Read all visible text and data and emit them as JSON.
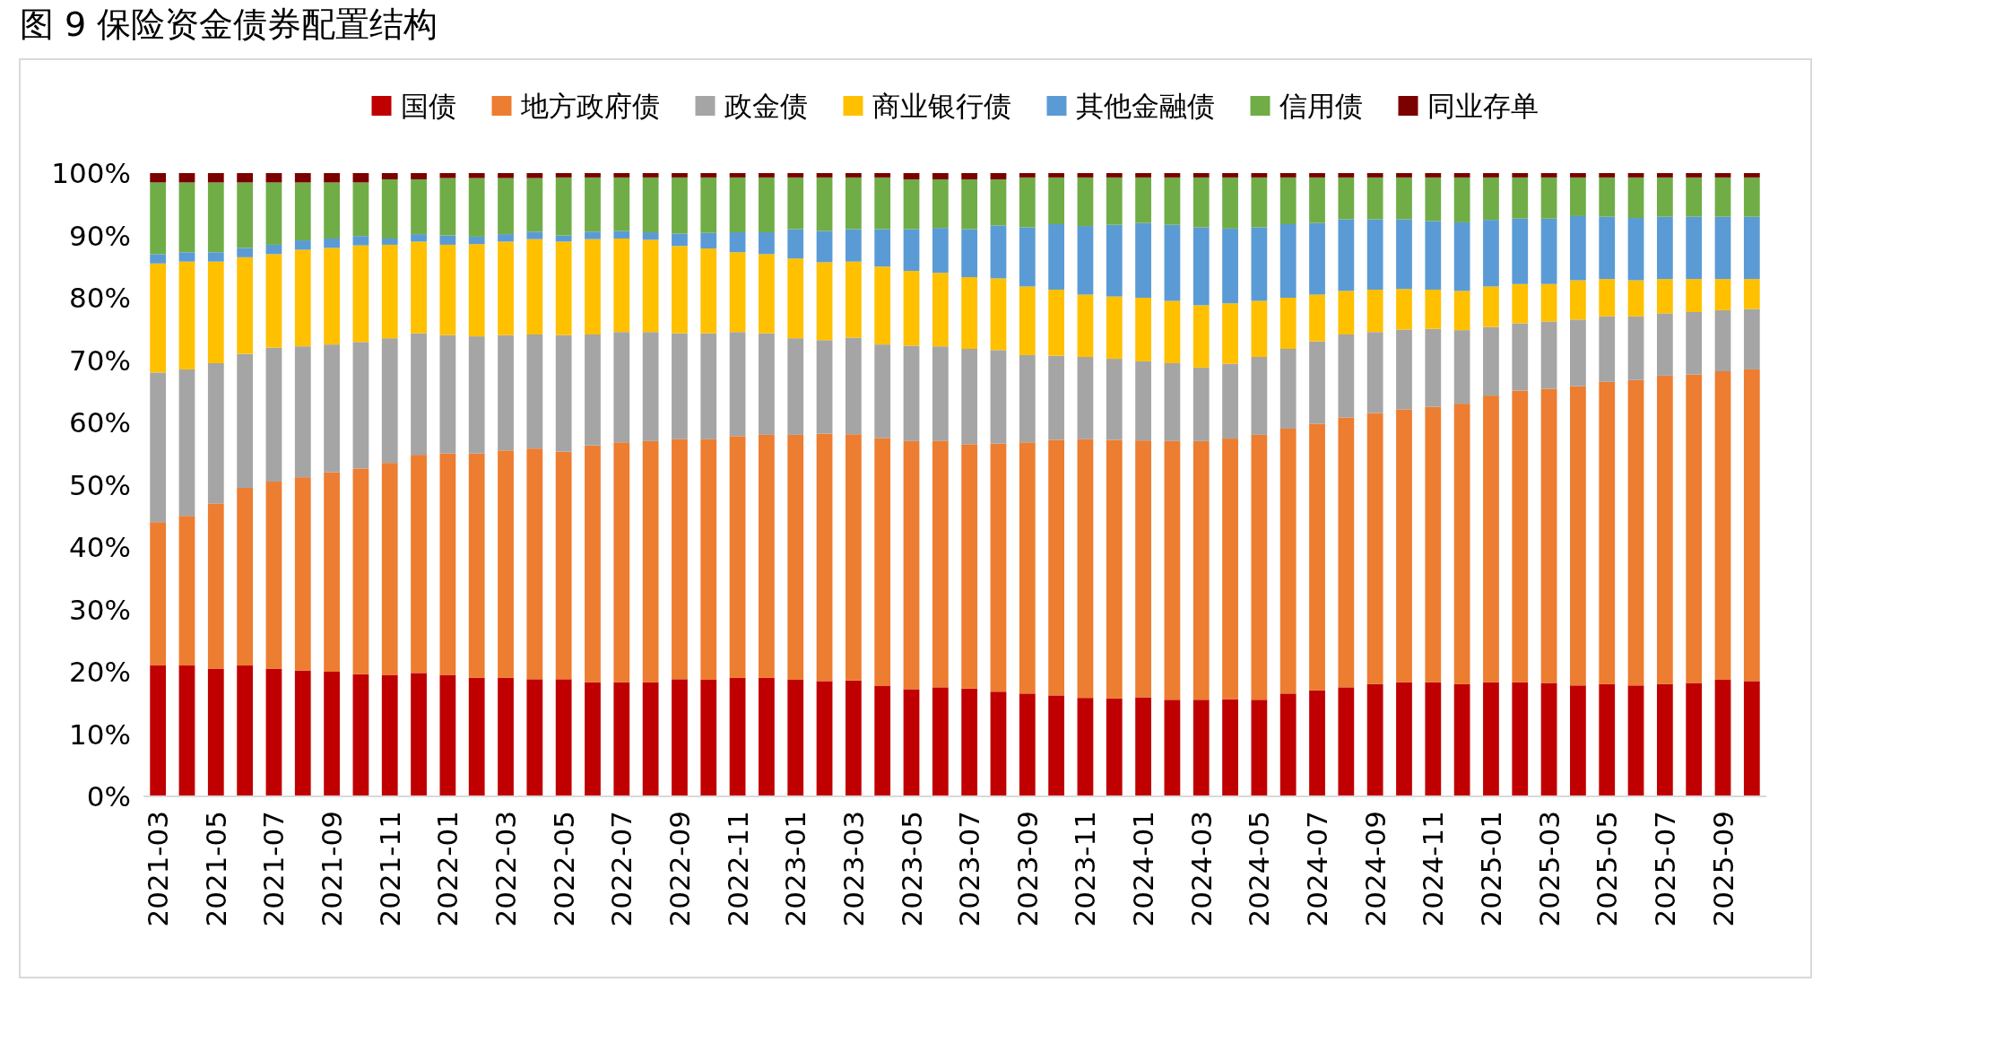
{
  "chart_data": {
    "type": "bar",
    "title": "图 9 保险资金债券配置结构",
    "stacked": true,
    "legend": "top",
    "grid": false,
    "categories": [
      "2021-03",
      null,
      "2021-05",
      null,
      "2021-07",
      null,
      "2021-09",
      null,
      "2021-11",
      null,
      "2022-01",
      null,
      "2022-03",
      null,
      "2022-05",
      null,
      "2022-07",
      null,
      "2022-09",
      null,
      "2022-11",
      null,
      "2023-01",
      null,
      "2023-03",
      null,
      "2023-05",
      null,
      "2023-07",
      null,
      "2023-09",
      null,
      "2023-11",
      null,
      "2024-01",
      null,
      "2024-03",
      null,
      "2024-05",
      null,
      "2024-07",
      null,
      "2024-09",
      null,
      "2024-11",
      null,
      "2025-01",
      null,
      "2025-03",
      null,
      "2025-05",
      null,
      "2025-07",
      null,
      "2025-09",
      null
    ],
    "ylim": [
      0,
      100
    ],
    "yticks": [
      {
        "value": 0,
        "label": "0%"
      },
      {
        "value": 10,
        "label": "10%"
      },
      {
        "value": 20,
        "label": "20%"
      },
      {
        "value": 30,
        "label": "30%"
      },
      {
        "value": 40,
        "label": "40%"
      },
      {
        "value": 50,
        "label": "50%"
      },
      {
        "value": 60,
        "label": "60%"
      },
      {
        "value": 70,
        "label": "70%"
      },
      {
        "value": 80,
        "label": "80%"
      },
      {
        "value": 90,
        "label": "90%"
      },
      {
        "value": 100,
        "label": "100%"
      }
    ],
    "series": [
      {
        "name": "国债",
        "color": "#c00000",
        "values": [
          21,
          21,
          20.5,
          21,
          20.5,
          20.2,
          20,
          19.6,
          19.5,
          19.8,
          19.5,
          19,
          19,
          18.8,
          18.8,
          18.3,
          18.3,
          18.3,
          18.8,
          18.7,
          19,
          19,
          18.7,
          18.5,
          18.6,
          17.7,
          17.2,
          17.5,
          17.3,
          16.8,
          16.5,
          16.2,
          15.8,
          15.7,
          15.9,
          15.5,
          15.5,
          15.6,
          15.5,
          16.5,
          17,
          17.5,
          18,
          18.3,
          18.3,
          18,
          18.3,
          18.3,
          18.2,
          17.8,
          18,
          17.8,
          18,
          18.2,
          18.7,
          18.5
        ]
      },
      {
        "name": "地方政府债",
        "color": "#ed7d31",
        "values": [
          23,
          24,
          26.5,
          28.5,
          30,
          31,
          32,
          33,
          34,
          35,
          35.5,
          36,
          36.5,
          37,
          36.5,
          38,
          38.5,
          38.7,
          38.5,
          38.6,
          38.8,
          39,
          39.3,
          39.7,
          39.5,
          39.8,
          39.8,
          39.5,
          39.2,
          39.8,
          40.3,
          41,
          41.5,
          41.5,
          41.2,
          41.5,
          41.5,
          41.8,
          42.5,
          42.5,
          42.8,
          43.3,
          43.5,
          43.8,
          44.2,
          45,
          46,
          46.8,
          47.2,
          48,
          48.5,
          49,
          49.5,
          49.5,
          49.5,
          50
        ]
      },
      {
        "name": "政金债",
        "color": "#a5a5a5",
        "values": [
          24,
          23.5,
          22.5,
          21.5,
          21.5,
          21,
          20.5,
          20.3,
          20,
          19.5,
          19,
          18.8,
          18.5,
          18.3,
          18.7,
          17.8,
          17.7,
          17.5,
          17,
          17,
          16.7,
          16.3,
          15.5,
          15,
          15.5,
          15,
          15.3,
          15.2,
          15.3,
          15,
          14,
          13.5,
          13.2,
          13,
          12.7,
          12.5,
          11.8,
          12,
          12.5,
          12.8,
          13.2,
          13.3,
          13,
          12.8,
          12.5,
          11.8,
          11,
          10.8,
          10.8,
          10.7,
          10.5,
          10.2,
          10,
          10,
          9.8,
          9.7
        ]
      },
      {
        "name": "商业银行债",
        "color": "#ffc000",
        "values": [
          17.5,
          17.3,
          16.3,
          15.5,
          15,
          15.5,
          15.5,
          15.5,
          15,
          14.7,
          14.5,
          14.8,
          15,
          15.3,
          15,
          15.3,
          15,
          14.8,
          14,
          13.6,
          12.8,
          12.7,
          12.8,
          12.5,
          12.2,
          12.5,
          12,
          11.8,
          11.5,
          11.5,
          11,
          10.6,
          10,
          10,
          10.2,
          10,
          10,
          9.7,
          9,
          8.2,
          7.5,
          7,
          6.8,
          6.5,
          6.3,
          6.3,
          6.5,
          6.3,
          6,
          6.3,
          6,
          5.8,
          5.5,
          5.3,
          5,
          4.8
        ]
      },
      {
        "name": "其他金融债",
        "color": "#5b9bd5",
        "values": [
          1.5,
          1.5,
          1.5,
          1.5,
          1.5,
          1.5,
          1.5,
          1.5,
          1,
          1.2,
          1.5,
          1.2,
          1.2,
          1.2,
          1,
          1.2,
          1.2,
          1.2,
          2,
          2.5,
          3.2,
          3.5,
          4.7,
          5,
          5.2,
          6,
          6.7,
          7.2,
          7.7,
          8.5,
          9.5,
          10.5,
          11,
          11.5,
          12,
          12.2,
          12.5,
          12,
          11.8,
          11.8,
          11.5,
          11.5,
          11.3,
          11.2,
          11,
          11,
          10.7,
          10.5,
          10.5,
          10.3,
          10,
          10,
          10,
          10,
          10,
          10
        ]
      },
      {
        "name": "信用债",
        "color": "#70ad47",
        "values": [
          11.5,
          11.2,
          11.2,
          10.5,
          10,
          9.3,
          9,
          8.6,
          9.5,
          8.8,
          9.2,
          9.4,
          9,
          8.6,
          9.3,
          8.7,
          8.6,
          8.8,
          9,
          8.9,
          8.8,
          8.8,
          8.3,
          8.6,
          8.3,
          8.3,
          8,
          7.8,
          8,
          7.4,
          8,
          7.5,
          7.8,
          7.6,
          7.3,
          7.6,
          8,
          8.2,
          8,
          7.5,
          7.3,
          6.7,
          6.7,
          6.7,
          7,
          7.2,
          6.8,
          6.6,
          6.6,
          6.2,
          6.3,
          6.5,
          6.3,
          6.3,
          6.3,
          6.3
        ]
      },
      {
        "name": "同业存单",
        "color": "#7b0000",
        "values": [
          1.5,
          1.5,
          1.5,
          1.5,
          1.5,
          1.5,
          1.5,
          1.5,
          1,
          1,
          0.8,
          0.8,
          0.8,
          0.8,
          0.7,
          0.7,
          0.7,
          0.7,
          0.7,
          0.7,
          0.7,
          0.7,
          0.7,
          0.7,
          0.7,
          0.7,
          1,
          1,
          1,
          1,
          0.7,
          0.7,
          0.7,
          0.7,
          0.7,
          0.7,
          0.7,
          0.7,
          0.7,
          0.7,
          0.7,
          0.7,
          0.7,
          0.7,
          0.7,
          0.7,
          0.7,
          0.7,
          0.7,
          0.7,
          0.7,
          0.7,
          0.7,
          0.7,
          0.7,
          0.7
        ]
      }
    ]
  }
}
